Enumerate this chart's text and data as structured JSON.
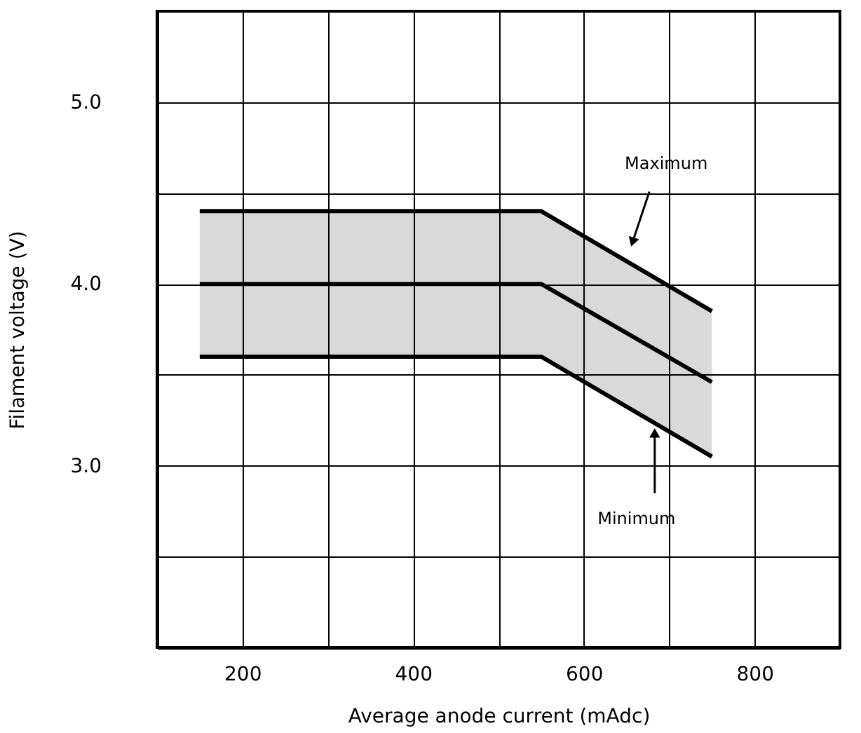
{
  "chart_data": {
    "type": "line",
    "xlabel": "Average anode current (mAdc)",
    "ylabel": "Filament voltage (V)",
    "x": [
      150,
      550,
      750
    ],
    "series": [
      {
        "color": "#000000",
        "values": [
          4.4,
          4.4,
          3.85
        ]
      },
      {
        "color": "#000000",
        "values": [
          4.0,
          4.0,
          3.46
        ],
        "lower": [
          3.6,
          3.6,
          3.05
        ],
        "upper": [
          4.4,
          4.4,
          3.85
        ]
      },
      {
        "color": "#000000",
        "values": [
          3.6,
          3.6,
          3.05
        ]
      }
    ],
    "xlim": [
      100,
      900
    ],
    "xticks": [
      {
        "value": 100,
        "label": null
      },
      200,
      {
        "value": 300,
        "label": null
      },
      400,
      {
        "value": 500,
        "label": null
      },
      600,
      {
        "value": 700,
        "label": null
      },
      800,
      {
        "value": 900,
        "label": null
      }
    ],
    "ylim": [
      2.0,
      5.5
    ],
    "yticks": [
      {
        "value": 2.0,
        "label": null
      },
      {
        "value": 2.5,
        "label": null
      },
      {
        "value": 3.0,
        "label": "3.0"
      },
      {
        "value": 3.5,
        "label": null
      },
      {
        "value": 4.0,
        "label": "4.0"
      },
      {
        "value": 4.5,
        "label": null
      },
      {
        "value": 5.0,
        "label": "5.0"
      },
      {
        "value": 5.5,
        "label": null
      }
    ],
    "grid": true,
    "line_style": "solid",
    "marker": "none",
    "annotations": [
      {
        "text": "Maximum",
        "x": 657,
        "y": 4.23
      },
      {
        "text": "Minimum",
        "x": 683,
        "y": 3.18
      }
    ]
  }
}
